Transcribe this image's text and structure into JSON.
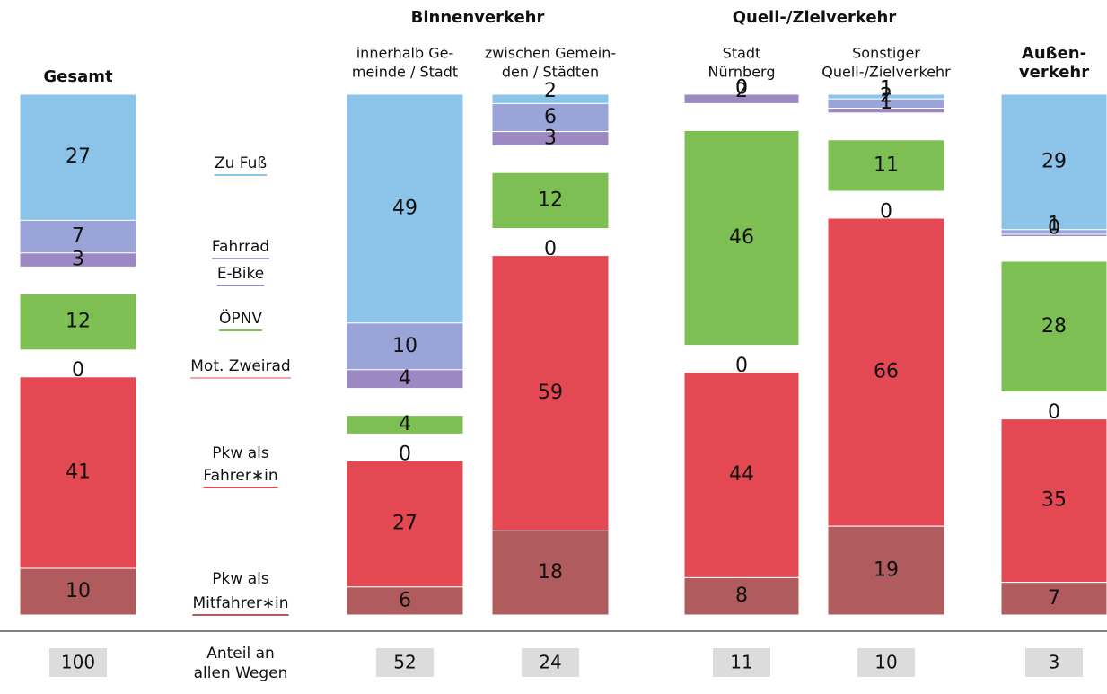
{
  "chart_data": {
    "type": "stacked_bar",
    "groups": [
      "Binnenverkehr",
      "Quell-/Zielverkehr"
    ],
    "categories": [
      [
        "Gesamt"
      ],
      [
        "innerhalb Ge-",
        "meinde / Stadt"
      ],
      [
        "zwischen Gemein-",
        "den / Städten"
      ],
      [
        "Stadt",
        "Nürnberg"
      ],
      [
        "Sonstiger",
        "Quell-/Zielverkehr"
      ],
      [
        "Außen-",
        "verkehr"
      ]
    ],
    "series": [
      {
        "name": [
          "Zu Fuß"
        ],
        "color": "#8cc3e8",
        "values": [
          27,
          49,
          2,
          0,
          1,
          29
        ]
      },
      {
        "name": [
          "Fahrrad"
        ],
        "color": "#9ba4d8",
        "values": [
          7,
          10,
          6,
          0,
          2,
          1
        ]
      },
      {
        "name": [
          "E-Bike"
        ],
        "color": "#9c88c2",
        "values": [
          3,
          4,
          3,
          2,
          1,
          0
        ]
      },
      {
        "name": [
          "ÖPNV"
        ],
        "color": "#7dbf52",
        "values": [
          12,
          4,
          12,
          46,
          11,
          28
        ]
      },
      {
        "name": [
          "Mot. Zweirad"
        ],
        "color": "#f2a3a3",
        "values": [
          0,
          0,
          0,
          0,
          0,
          0
        ]
      },
      {
        "name": [
          "Pkw als",
          "Fahrer∗in"
        ],
        "color": "#e44853",
        "values": [
          41,
          27,
          59,
          44,
          66,
          35
        ]
      },
      {
        "name": [
          "Pkw als",
          "Mitfahrer∗in"
        ],
        "color": "#b05b5e",
        "values": [
          10,
          6,
          18,
          8,
          19,
          7
        ]
      }
    ],
    "share_label": [
      "Anteil an",
      "allen Wegen"
    ],
    "shares": [
      100,
      52,
      24,
      11,
      10,
      3
    ]
  }
}
